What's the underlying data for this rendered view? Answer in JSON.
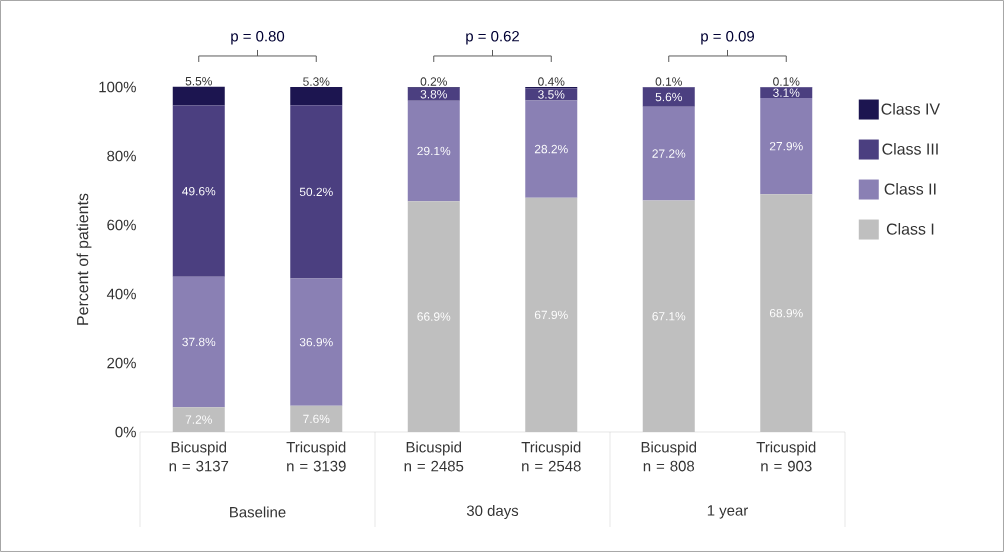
{
  "chart_data": {
    "type": "bar",
    "stacked": true,
    "categories": [
      "Bicuspid n = 3137",
      "Tricuspid n = 3139",
      "Bicuspid n = 2485",
      "Tricuspid n = 2548",
      "Bicuspid n = 808",
      "Tricuspid n = 903"
    ],
    "ylabel": "Percent of patients",
    "ylim": [
      0,
      100
    ],
    "yticks": [
      {
        "value": 0,
        "label": "0%"
      },
      {
        "value": 20,
        "label": "20%"
      },
      {
        "value": 40,
        "label": "40%"
      },
      {
        "value": 60,
        "label": "60%"
      },
      {
        "value": 80,
        "label": "80%"
      },
      {
        "value": 100,
        "label": "100%"
      }
    ],
    "series": [
      {
        "name": "Class I",
        "color": "#bfbfbf",
        "values": [
          7.2,
          7.6,
          66.9,
          67.9,
          67.1,
          68.9
        ],
        "value_labels": [
          "7.2%",
          "7.6%",
          "66.9%",
          "67.9%",
          "67.1%",
          "68.9%"
        ]
      },
      {
        "name": "Class II",
        "color": "#8a80b4",
        "values": [
          37.8,
          36.9,
          29.1,
          28.2,
          27.2,
          27.9
        ],
        "value_labels": [
          "37.8%",
          "36.9%",
          "29.1%",
          "28.2%",
          "27.2%",
          "27.9%"
        ]
      },
      {
        "name": "Class III",
        "color": "#4b3f80",
        "values": [
          49.6,
          50.2,
          3.8,
          3.5,
          5.6,
          3.1
        ],
        "value_labels": [
          "49.6%",
          "50.2%",
          "3.8%",
          "3.5%",
          "5.6%",
          "3.1%"
        ]
      },
      {
        "name": "Class IV",
        "color": "#1c1550",
        "values": [
          5.5,
          5.3,
          0.2,
          0.4,
          0.1,
          0.1
        ],
        "value_labels": [
          "5.5%",
          "5.3%",
          "0.2%",
          "0.4%",
          "0.1%",
          "0.1%"
        ]
      }
    ],
    "annotations": [
      "Baseline",
      "30 days",
      "1 year",
      "p = 0.80",
      "p = 0.62",
      "p = 0.09"
    ],
    "legend": "right",
    "grid": false
  }
}
